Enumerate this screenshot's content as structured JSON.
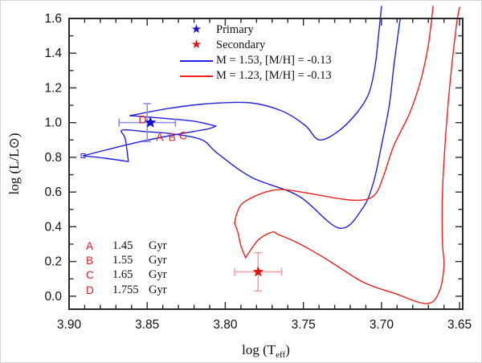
{
  "figure": {
    "xlabel_pre": "log (T",
    "xlabel_sub": "eff",
    "xlabel_post": ")",
    "ylabel": "log (L/L⊙)",
    "x_tick_labels": [
      "3.90",
      "3.85",
      "3.80",
      "3.75",
      "3.70",
      "3.65"
    ],
    "x_tick_values": [
      3.9,
      3.85,
      3.8,
      3.75,
      3.7,
      3.65
    ],
    "y_tick_labels": [
      "0.0",
      "0.2",
      "0.4",
      "0.6",
      "0.8",
      "1.0",
      "1.2",
      "1.4",
      "1.6"
    ],
    "y_tick_values": [
      0.0,
      0.2,
      0.4,
      0.6,
      0.8,
      1.0,
      1.2,
      1.4,
      1.6
    ],
    "axis_color": "#2b2b2b",
    "text_color": "#111111"
  },
  "legend": {
    "entries": [
      {
        "marker": "star",
        "color": "#1212cc",
        "label": "Primary"
      },
      {
        "marker": "star",
        "color": "#e31515",
        "label": "Secondary"
      },
      {
        "marker": "line",
        "color": "#2020dd",
        "label": "M = 1.53, [M/H] = -0.13"
      },
      {
        "marker": "line",
        "color": "#ee2020",
        "label": "M = 1.23, [M/H] = -0.13"
      }
    ]
  },
  "ages": {
    "rows": [
      {
        "key": "A",
        "value": "1.45",
        "unit": "Gyr"
      },
      {
        "key": "B",
        "value": "1.55",
        "unit": "Gyr"
      },
      {
        "key": "C",
        "value": "1.65",
        "unit": "Gyr"
      },
      {
        "key": "D",
        "value": "1.755",
        "unit": "Gyr"
      }
    ]
  },
  "chart_data": {
    "type": "line",
    "title": "",
    "xlabel": "log (Teff)",
    "ylabel": "log (L/Lsun)",
    "x_axis_reversed": true,
    "xlim": [
      3.9,
      3.648
    ],
    "ylim": [
      -0.075,
      1.6
    ],
    "grid": false,
    "legend_position": "top-center",
    "series": [
      {
        "name": "M = 1.53, [M/H] = -0.13",
        "color": "#2020dd",
        "segments": [
          [
            [
              3.688,
              1.6
            ],
            [
              3.692,
              1.332
            ],
            [
              3.695,
              1.1
            ],
            [
              3.7,
              0.869
            ],
            [
              3.705,
              0.661
            ],
            [
              3.712,
              0.508
            ],
            [
              3.727,
              0.392
            ],
            [
              3.753,
              0.577
            ],
            [
              3.783,
              0.684
            ],
            [
              3.805,
              0.823
            ],
            [
              3.815,
              0.901
            ],
            [
              3.833,
              0.934
            ],
            [
              3.851,
              0.948
            ],
            [
              3.866,
              0.957
            ],
            [
              3.864,
              0.906
            ],
            [
              3.862,
              0.776
            ]
          ],
          [
            [
              3.862,
              0.776
            ],
            [
              3.877,
              0.795
            ],
            [
              3.891,
              0.809
            ]
          ],
          [
            [
              3.891,
              0.809
            ],
            [
              3.877,
              0.841
            ],
            [
              3.856,
              0.887
            ],
            [
              3.833,
              0.929
            ],
            [
              3.812,
              0.962
            ],
            [
              3.806,
              0.98
            ]
          ],
          [
            [
              3.806,
              0.98
            ],
            [
              3.82,
              1.008
            ],
            [
              3.841,
              1.026
            ],
            [
              3.861,
              1.04
            ]
          ],
          [
            [
              3.861,
              1.04
            ],
            [
              3.836,
              1.082
            ],
            [
              3.81,
              1.11
            ],
            [
              3.784,
              1.114
            ],
            [
              3.764,
              1.068
            ],
            [
              3.749,
              0.985
            ],
            [
              3.74,
              0.901
            ],
            [
              3.728,
              0.948
            ],
            [
              3.716,
              1.054
            ],
            [
              3.708,
              1.17
            ],
            [
              3.704,
              1.332
            ],
            [
              3.702,
              1.494
            ],
            [
              3.7,
              1.67
            ]
          ]
        ],
        "start_marker": {
          "shape": "open-square",
          "logTeff": 3.891,
          "logL": 0.809
        }
      },
      {
        "name": "M = 1.23, [M/H] = -0.13",
        "color": "#ee2020",
        "segments": [
          [
            [
              3.65,
              1.665
            ],
            [
              3.652,
              1.563
            ],
            [
              3.656,
              1.239
            ],
            [
              3.659,
              0.915
            ],
            [
              3.661,
              0.591
            ],
            [
              3.661,
              0.314
            ],
            [
              3.66,
              0.175
            ],
            [
              3.663,
              0.027
            ],
            [
              3.671,
              -0.043
            ],
            [
              3.692,
              0.017
            ],
            [
              3.712,
              0.082
            ],
            [
              3.735,
              0.212
            ],
            [
              3.753,
              0.304
            ],
            [
              3.766,
              0.355
            ],
            [
              3.77,
              0.369
            ],
            [
              3.779,
              0.323
            ],
            [
              3.787,
              0.221
            ]
          ],
          [
            [
              3.787,
              0.221
            ],
            [
              3.79,
              0.29
            ],
            [
              3.792,
              0.369
            ],
            [
              3.794,
              0.42
            ]
          ],
          [
            [
              3.794,
              0.42
            ],
            [
              3.793,
              0.466
            ],
            [
              3.79,
              0.526
            ],
            [
              3.784,
              0.563
            ],
            [
              3.774,
              0.6
            ],
            [
              3.763,
              0.614
            ],
            [
              3.743,
              0.587
            ],
            [
              3.725,
              0.559
            ],
            [
              3.712,
              0.554
            ],
            [
              3.704,
              0.587
            ],
            [
              3.699,
              0.684
            ],
            [
              3.692,
              0.869
            ],
            [
              3.682,
              1.054
            ],
            [
              3.675,
              1.239
            ],
            [
              3.67,
              1.447
            ],
            [
              3.667,
              1.67
            ]
          ]
        ]
      }
    ],
    "points": [
      {
        "name": "Primary",
        "logTeff": 3.85,
        "logL": 1.0,
        "xerr": 0.018,
        "yerr": 0.11,
        "color": "#1212cc",
        "err_color": "#8a8ae8",
        "size": 7
      },
      {
        "name": "Secondary",
        "logTeff": 3.779,
        "logL": 0.14,
        "xerr": 0.015,
        "yerr": 0.11,
        "color": "#e31515",
        "err_color": "#f5a0a0",
        "size": 6.5
      }
    ],
    "track_point_labels": [
      {
        "text": "A",
        "logTeff": 3.842,
        "logL": 0.918
      },
      {
        "text": "B",
        "logTeff": 3.834,
        "logL": 0.918
      },
      {
        "text": "C",
        "logTeff": 3.827,
        "logL": 0.927
      },
      {
        "text": "D",
        "logTeff": 3.853,
        "logL": 1.02
      }
    ],
    "annotations": [
      "A 1.45 Gyr",
      "B 1.55 Gyr",
      "C 1.65 Gyr",
      "D 1.755 Gyr"
    ]
  }
}
